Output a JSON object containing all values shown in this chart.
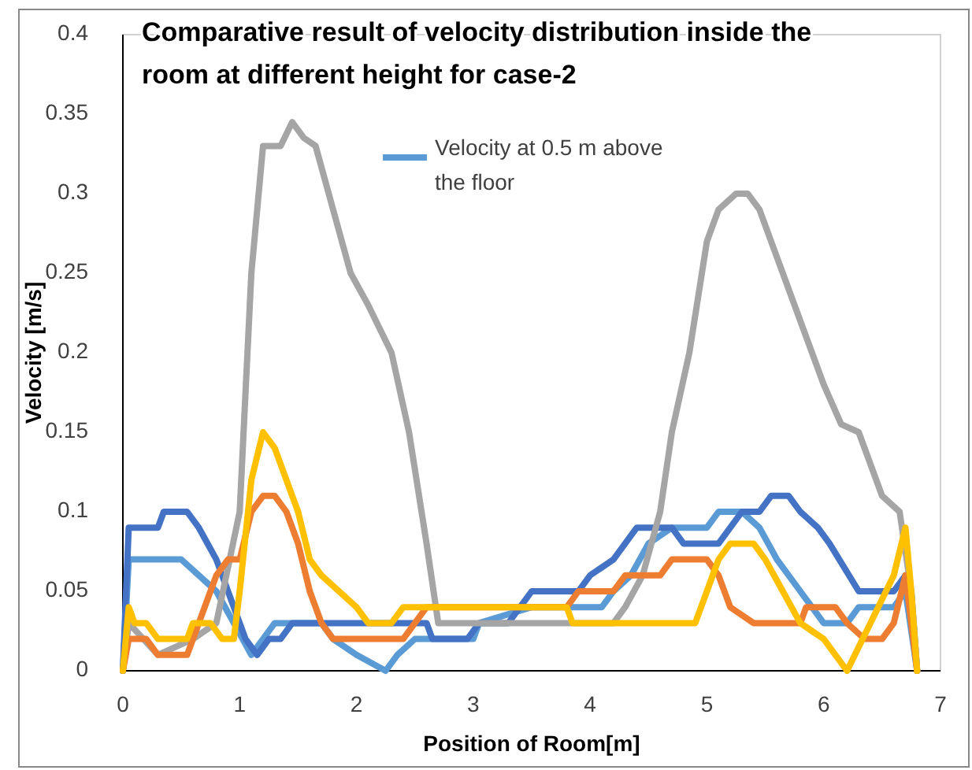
{
  "chart_data": {
    "type": "line",
    "title": "Comparative result of velocity distribution inside the room at different height for case-2",
    "xlabel": "Position of Room[m]",
    "ylabel": "Velocity [m/s]",
    "xlim": [
      0,
      7
    ],
    "xticks": [
      0,
      1,
      2,
      3,
      4,
      5,
      6,
      7
    ],
    "ylim": [
      0,
      0.4
    ],
    "yticks": [
      0,
      0.05,
      0.1,
      0.15,
      0.2,
      0.25,
      0.3,
      0.35,
      0.4
    ],
    "grid": false,
    "legend": "top",
    "marker": "none",
    "line_style": "solid",
    "series": [
      {
        "name": "Velocity at 0.5 m above the floor",
        "color": "#5b9bd5",
        "x": [
          0,
          0.05,
          0.5,
          0.65,
          0.8,
          0.95,
          1.1,
          1.2,
          1.3,
          1.7,
          1.8,
          2.0,
          2.25,
          2.35,
          2.5,
          3.0,
          3.05,
          3.5,
          4.1,
          4.2,
          4.35,
          4.5,
          4.7,
          5.0,
          5.1,
          5.3,
          5.45,
          5.6,
          5.8,
          6.0,
          6.2,
          6.3,
          6.6,
          6.7,
          6.8
        ],
        "values": [
          0,
          0.07,
          0.07,
          0.06,
          0.05,
          0.03,
          0.01,
          0.02,
          0.03,
          0.03,
          0.02,
          0.01,
          0,
          0.01,
          0.02,
          0.02,
          0.03,
          0.04,
          0.04,
          0.05,
          0.06,
          0.08,
          0.09,
          0.09,
          0.1,
          0.1,
          0.09,
          0.07,
          0.05,
          0.03,
          0.03,
          0.04,
          0.04,
          0.05,
          0
        ]
      },
      {
        "color": "#4472c4",
        "x": [
          0,
          0.05,
          0.3,
          0.35,
          0.55,
          0.65,
          0.8,
          0.95,
          1.05,
          1.15,
          1.25,
          1.35,
          1.45,
          2.6,
          2.65,
          2.95,
          3.05,
          3.3,
          3.4,
          3.5,
          3.9,
          4.0,
          4.2,
          4.3,
          4.4,
          4.7,
          4.8,
          5.1,
          5.2,
          5.3,
          5.45,
          5.55,
          5.7,
          5.8,
          5.95,
          6.05,
          6.3,
          6.6,
          6.7,
          6.75,
          6.8
        ],
        "values": [
          0,
          0.09,
          0.09,
          0.1,
          0.1,
          0.09,
          0.07,
          0.04,
          0.02,
          0.01,
          0.02,
          0.02,
          0.03,
          0.03,
          0.02,
          0.02,
          0.03,
          0.03,
          0.04,
          0.05,
          0.05,
          0.06,
          0.07,
          0.08,
          0.09,
          0.09,
          0.08,
          0.08,
          0.09,
          0.1,
          0.1,
          0.11,
          0.11,
          0.1,
          0.09,
          0.08,
          0.05,
          0.05,
          0.06,
          0.05,
          0
        ]
      },
      {
        "color": "#a5a5a5",
        "x": [
          0,
          0.05,
          0.3,
          0.6,
          0.8,
          1.0,
          1.1,
          1.2,
          1.35,
          1.45,
          1.55,
          1.65,
          1.8,
          1.95,
          2.1,
          2.3,
          2.45,
          2.6,
          2.7,
          4.2,
          4.3,
          4.45,
          4.6,
          4.7,
          4.85,
          5.0,
          5.1,
          5.25,
          5.35,
          5.45,
          5.6,
          5.8,
          6.0,
          6.15,
          6.3,
          6.5,
          6.65,
          6.75,
          6.8
        ],
        "values": [
          0,
          0.03,
          0.01,
          0.02,
          0.03,
          0.1,
          0.25,
          0.33,
          0.33,
          0.345,
          0.335,
          0.33,
          0.29,
          0.25,
          0.23,
          0.2,
          0.15,
          0.08,
          0.03,
          0.03,
          0.04,
          0.06,
          0.1,
          0.15,
          0.2,
          0.27,
          0.29,
          0.3,
          0.3,
          0.29,
          0.26,
          0.22,
          0.18,
          0.155,
          0.15,
          0.11,
          0.1,
          0.05,
          0
        ]
      },
      {
        "color": "#ed7d31",
        "x": [
          0,
          0.05,
          0.2,
          0.3,
          0.55,
          0.65,
          0.8,
          0.9,
          1.0,
          1.1,
          1.2,
          1.3,
          1.4,
          1.5,
          1.6,
          1.7,
          1.8,
          2.4,
          2.5,
          2.6,
          3.8,
          3.9,
          4.2,
          4.3,
          4.6,
          4.7,
          5.0,
          5.1,
          5.2,
          5.4,
          5.8,
          5.85,
          6.1,
          6.2,
          6.35,
          6.5,
          6.6,
          6.7,
          6.8
        ],
        "values": [
          0,
          0.02,
          0.02,
          0.01,
          0.01,
          0.03,
          0.06,
          0.07,
          0.07,
          0.1,
          0.11,
          0.11,
          0.1,
          0.08,
          0.05,
          0.03,
          0.02,
          0.02,
          0.03,
          0.04,
          0.04,
          0.05,
          0.05,
          0.06,
          0.06,
          0.07,
          0.07,
          0.06,
          0.04,
          0.03,
          0.03,
          0.04,
          0.04,
          0.03,
          0.02,
          0.02,
          0.03,
          0.06,
          0
        ]
      },
      {
        "color": "#ffc000",
        "x": [
          0,
          0.05,
          0.1,
          0.2,
          0.3,
          0.55,
          0.6,
          0.75,
          0.85,
          0.95,
          1.0,
          1.1,
          1.2,
          1.3,
          1.4,
          1.5,
          1.6,
          1.7,
          1.85,
          2.0,
          2.1,
          2.3,
          2.4,
          3.8,
          3.85,
          4.9,
          5.0,
          5.1,
          5.2,
          5.4,
          5.5,
          5.65,
          5.8,
          6.0,
          6.2,
          6.4,
          6.6,
          6.7,
          6.75,
          6.8
        ],
        "values": [
          0,
          0.04,
          0.03,
          0.03,
          0.02,
          0.02,
          0.03,
          0.03,
          0.02,
          0.02,
          0.05,
          0.12,
          0.15,
          0.14,
          0.12,
          0.1,
          0.07,
          0.06,
          0.05,
          0.04,
          0.03,
          0.03,
          0.04,
          0.04,
          0.03,
          0.03,
          0.05,
          0.07,
          0.08,
          0.08,
          0.07,
          0.05,
          0.03,
          0.02,
          0,
          0.03,
          0.06,
          0.09,
          0.05,
          0
        ]
      }
    ]
  }
}
